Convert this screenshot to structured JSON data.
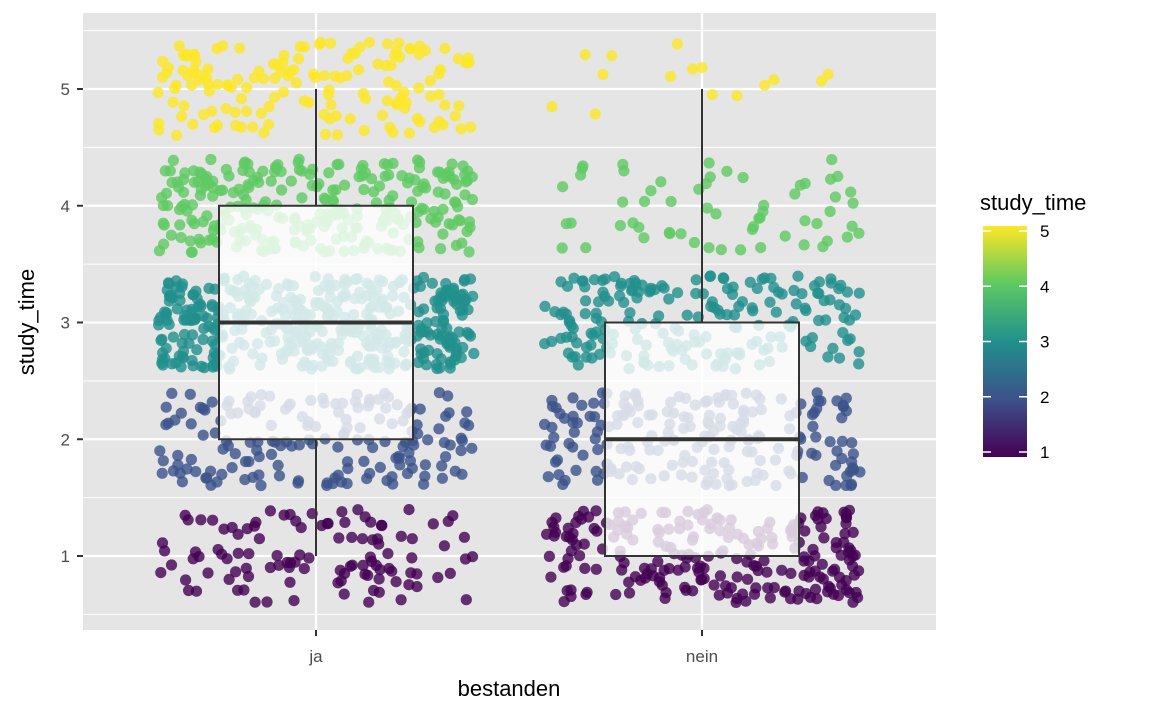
{
  "chart_data": {
    "type": "scatter",
    "subtype": "jittered points with boxplot overlay",
    "xlabel": "bestanden",
    "ylabel": "study_time",
    "categories": [
      "ja",
      "nein"
    ],
    "y_ticks": [
      "1",
      "2",
      "3",
      "4",
      "5"
    ],
    "ylim": [
      0.5,
      5.5
    ],
    "grid": true,
    "legend": {
      "title": "study_time",
      "type": "continuous colorbar",
      "placement": "right",
      "labels": [
        "5",
        "4",
        "3",
        "2",
        "1"
      ],
      "range": [
        1,
        5
      ]
    },
    "colors": {
      "panel_background": "#e5e5e5",
      "gridline": "#ffffff",
      "box_fill": "#ffffff",
      "box_line": "#333333",
      "viridis_1": "#440154",
      "viridis_2": "#3b528b",
      "viridis_3": "#21908c",
      "viridis_4": "#5ec962",
      "viridis_5": "#fde725"
    },
    "boxplots": [
      {
        "category": "ja",
        "min": 1,
        "q1": 2,
        "median": 3,
        "q3": 4,
        "max": 5
      },
      {
        "category": "nein",
        "min": 1,
        "q1": 1,
        "median": 2,
        "q3": 3,
        "max": 5
      }
    ],
    "series": [
      {
        "category": "ja",
        "study_time": 1,
        "count": 110
      },
      {
        "category": "ja",
        "study_time": 2,
        "count": 170
      },
      {
        "category": "ja",
        "study_time": 3,
        "count": 420
      },
      {
        "category": "ja",
        "study_time": 4,
        "count": 270
      },
      {
        "category": "ja",
        "study_time": 5,
        "count": 150
      },
      {
        "category": "nein",
        "study_time": 1,
        "count": 230
      },
      {
        "category": "nein",
        "study_time": 2,
        "count": 200
      },
      {
        "category": "nein",
        "study_time": 3,
        "count": 200
      },
      {
        "category": "nein",
        "study_time": 4,
        "count": 60
      },
      {
        "category": "nein",
        "study_time": 5,
        "count": 15
      }
    ]
  }
}
